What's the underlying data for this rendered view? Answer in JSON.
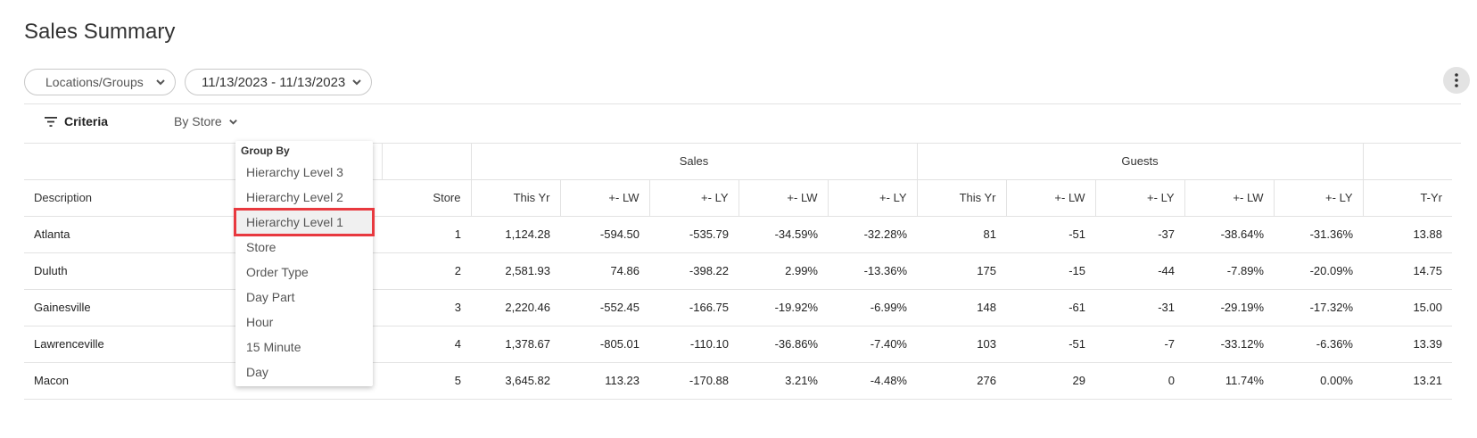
{
  "page": {
    "title": "Sales Summary"
  },
  "filters": {
    "locations_label": "Locations/Groups",
    "date_range": "11/13/2023 - 11/13/2023"
  },
  "criteria": {
    "label": "Criteria",
    "group_by_selected": "By Store"
  },
  "dropdown": {
    "header": "Group By",
    "options": [
      "Hierarchy Level 3",
      "Hierarchy Level 2",
      "Hierarchy Level 1",
      "Store",
      "Order Type",
      "Day Part",
      "Hour",
      "15 Minute",
      "Day"
    ],
    "highlighted": "Hierarchy Level 1"
  },
  "table": {
    "groups": {
      "sales": "Sales",
      "guests": "Guests"
    },
    "columns": [
      "Description",
      "Store",
      "This Yr",
      "+- LW",
      "+- LY",
      "+- LW",
      "+- LY",
      "This Yr",
      "+- LW",
      "+- LY",
      "+- LW",
      "+- LY",
      "T-Yr"
    ],
    "rows": [
      [
        "Atlanta",
        "1",
        "1,124.28",
        "-594.50",
        "-535.79",
        "-34.59%",
        "-32.28%",
        "81",
        "-51",
        "-37",
        "-38.64%",
        "-31.36%",
        "13.88"
      ],
      [
        "Duluth",
        "2",
        "2,581.93",
        "74.86",
        "-398.22",
        "2.99%",
        "-13.36%",
        "175",
        "-15",
        "-44",
        "-7.89%",
        "-20.09%",
        "14.75"
      ],
      [
        "Gainesville",
        "3",
        "2,220.46",
        "-552.45",
        "-166.75",
        "-19.92%",
        "-6.99%",
        "148",
        "-61",
        "-31",
        "-29.19%",
        "-17.32%",
        "15.00"
      ],
      [
        "Lawrenceville",
        "4",
        "1,378.67",
        "-805.01",
        "-110.10",
        "-36.86%",
        "-7.40%",
        "103",
        "-51",
        "-7",
        "-33.12%",
        "-6.36%",
        "13.39"
      ],
      [
        "Macon",
        "5",
        "3,645.82",
        "113.23",
        "-170.88",
        "3.21%",
        "-4.48%",
        "276",
        "29",
        "0",
        "11.74%",
        "0.00%",
        "13.21"
      ]
    ]
  },
  "colors": {
    "highlight_outline": "#e8393f",
    "divider": "#e2e2e2",
    "more_button_bg": "#e3e3e3"
  },
  "icons": {
    "locations": "chevron-down-icon",
    "dates": "chevron-down-icon",
    "more": "more-vertical-icon",
    "criteria": "filter-icon",
    "bystore": "chevron-down-icon"
  }
}
